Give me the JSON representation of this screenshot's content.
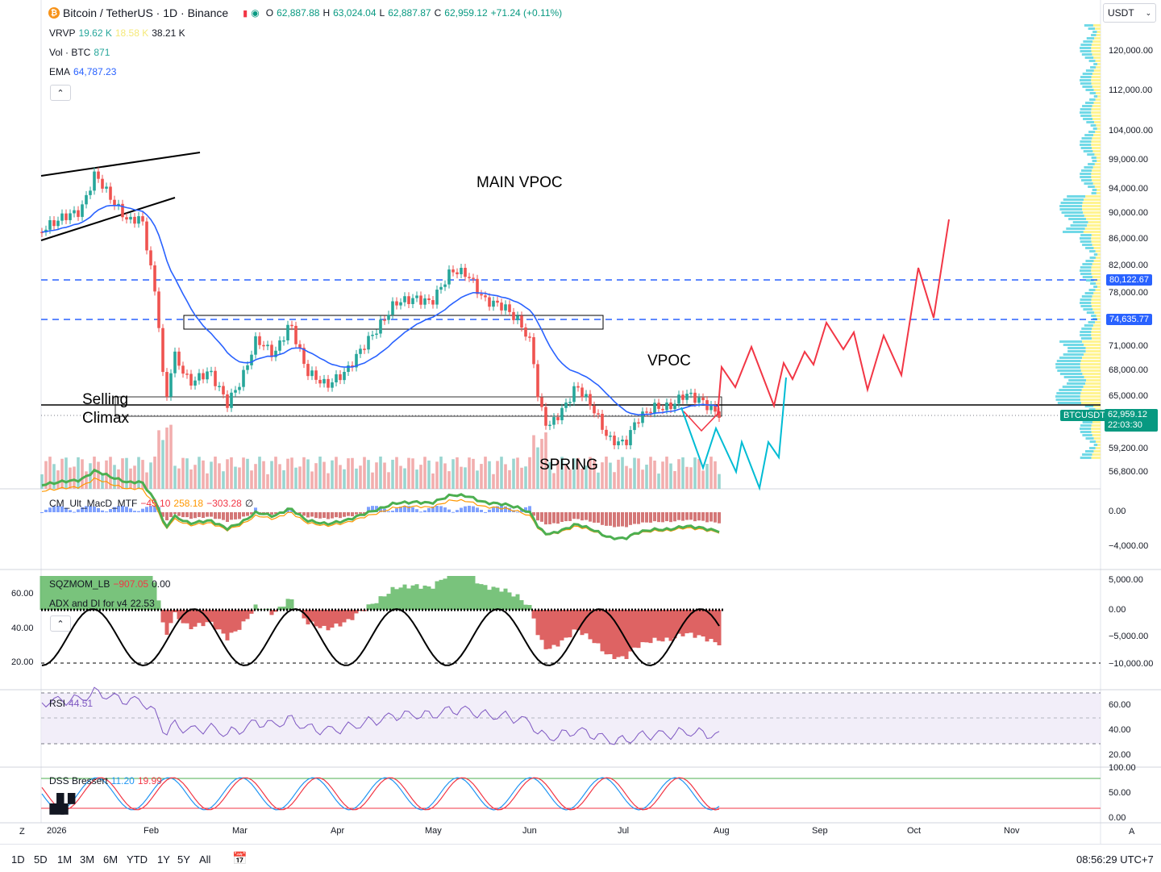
{
  "header": {
    "symbol_title": "Bitcoin / TetherUS · 1D · Binance",
    "o_label": "O",
    "o": "62,887.88",
    "h_label": "H",
    "h": "63,024.04",
    "l_label": "L",
    "l": "62,887.87",
    "c_label": "C",
    "c": "62,959.12",
    "change": "+71.24 (+0.11%)"
  },
  "indicators": {
    "vrvp": {
      "name": "VRVP",
      "v1": "19.62 K",
      "v2": "18.58 K",
      "v3": "38.21 K"
    },
    "vol": {
      "name": "Vol · BTC",
      "v": "871"
    },
    "ema": {
      "name": "EMA",
      "v": "64,787.23"
    },
    "macd": {
      "name": "CM_Ult_MacD_MTF",
      "v1": "−45.10",
      "v2": "258.18",
      "v3": "−303.28",
      "v4": "∅"
    },
    "sqz": {
      "name": "SQZMOM_LB",
      "v1": "−907.05",
      "v2": "0.00"
    },
    "adx": {
      "name": "ADX and DI for v4",
      "v": "22.53"
    },
    "rsi": {
      "name": "RSI",
      "v": "44.51"
    },
    "dss": {
      "name": "DSS Bressert",
      "v1": "11.20",
      "v2": "19.99"
    }
  },
  "currency_select": "USDT",
  "price_axis": [
    "120,000.00",
    "112,000.00",
    "104,000.00",
    "99,000.00",
    "94,000.00",
    "90,000.00",
    "86,000.00",
    "82,000.00",
    "78,000.00",
    "71,000.00",
    "68,000.00",
    "65,000.00",
    "59,200.00",
    "56,800.00"
  ],
  "price_tags": {
    "level1": "80,122.67",
    "level2": "74,635.77",
    "symbol": "BTCUSDT",
    "last": "62,959.12",
    "countdown": "22:03:30"
  },
  "macd_axis": [
    "0.00",
    "−4,000.00"
  ],
  "sqz_axis_right": [
    "5,000.00",
    "0.00",
    "−5,000.00",
    "−10,000.00"
  ],
  "adx_axis_left": [
    "60.00",
    "40.00",
    "20.00"
  ],
  "rsi_axis": [
    "60.00",
    "40.00",
    "20.00"
  ],
  "dss_axis": [
    "100.00",
    "50.00",
    "0.00"
  ],
  "time_axis": [
    "2026",
    "Feb",
    "Mar",
    "Apr",
    "May",
    "Jun",
    "Jul",
    "Aug",
    "Sep",
    "Oct",
    "Nov"
  ],
  "annotations": {
    "main_vpoc": "MAIN VPOC",
    "vpoc": "VPOC",
    "selling_climax_1": "Selling",
    "selling_climax_2": "Climax",
    "spring": "SPRING"
  },
  "bottom_bar": {
    "timeframes": [
      "1D",
      "5D",
      "1M",
      "3M",
      "6M",
      "YTD",
      "1Y",
      "5Y",
      "All"
    ],
    "clock": "08:56:29 UTC+7",
    "zoom_label": "Z",
    "auto_label": "A"
  },
  "colors": {
    "up": "#26a69a",
    "down": "#ef5350",
    "ema": "#2962ff",
    "dashed_level": "#2962ff",
    "projection_red": "#f23645",
    "projection_cyan": "#00bcd4",
    "rsi_line": "#7e57c2"
  }
}
